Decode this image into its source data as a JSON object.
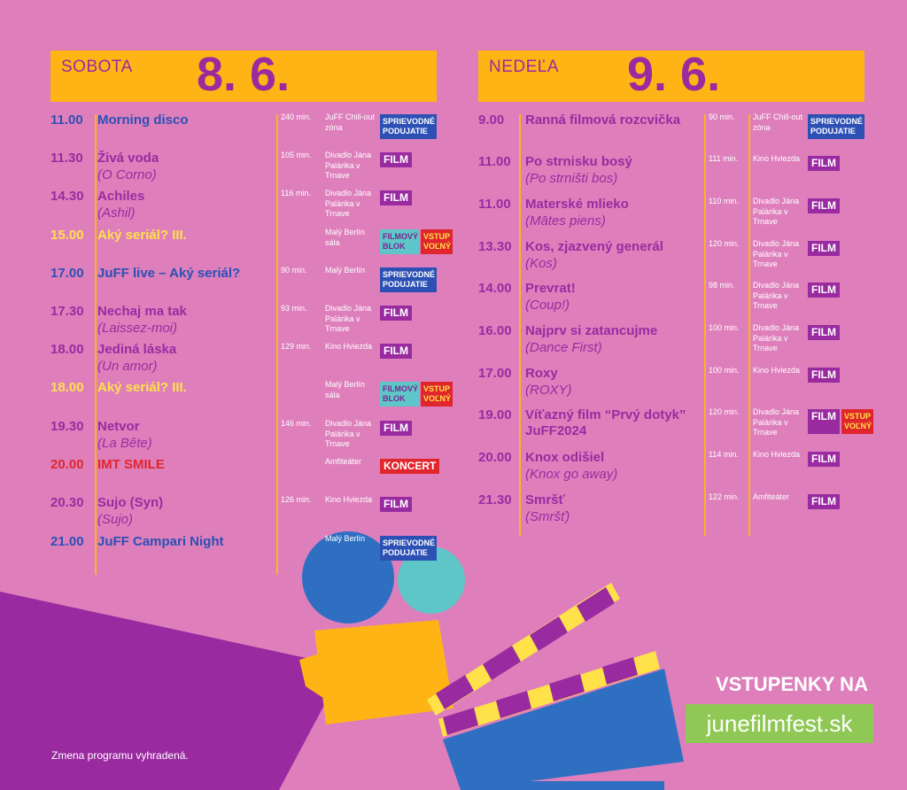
{
  "saturday": {
    "name": "SOBOTA",
    "date": "8. 6.",
    "events": [
      {
        "time": "11.00",
        "title": "Morning disco",
        "sub": "",
        "dur": "240 min.",
        "venue": "JuFF Chill-out zóna",
        "tags": [
          "SPRIEVODNÉ PODUJATIE"
        ],
        "color": "blue"
      },
      {
        "time": "11.30",
        "title": "Živá voda",
        "sub": "(O Corno)",
        "dur": "105 min.",
        "venue": "Divadlo Jána Palárika v Trnave",
        "tags": [
          "FILM"
        ],
        "color": "purple"
      },
      {
        "time": "14.30",
        "title": "Achiles",
        "sub": "(Ashil)",
        "dur": "116 min.",
        "venue": "Divadlo Jána Palárika v Trnave",
        "tags": [
          "FILM"
        ],
        "color": "purple"
      },
      {
        "time": "15.00",
        "title": "Aký seriál? III.",
        "sub": "",
        "dur": "",
        "venue": "Malý Berlín sála",
        "tags": [
          "FILMOVÝ BLOK",
          "VSTUP VOĽNÝ"
        ],
        "color": "yellow"
      },
      {
        "time": "17.00",
        "title": "JuFF live – Aký seriál?",
        "sub": "",
        "dur": "90 min.",
        "venue": "Malý Berlín",
        "tags": [
          "SPRIEVODNÉ PODUJATIE"
        ],
        "color": "blue"
      },
      {
        "time": "17.30",
        "title": "Nechaj ma tak",
        "sub": "(Laissez-moi)",
        "dur": "93 min.",
        "venue": "Divadlo Jána Palárika v Trnave",
        "tags": [
          "FILM"
        ],
        "color": "purple"
      },
      {
        "time": "18.00",
        "title": "Jediná láska",
        "sub": "(Un amor)",
        "dur": "129 min.",
        "venue": "Kino Hviezda",
        "tags": [
          "FILM"
        ],
        "color": "purple"
      },
      {
        "time": "18.00",
        "title": "Aký seriál? III.",
        "sub": "",
        "dur": "",
        "venue": "Malý Berlín sála",
        "tags": [
          "FILMOVÝ BLOK",
          "VSTUP VOĽNÝ"
        ],
        "color": "yellow"
      },
      {
        "time": "19.30",
        "title": "Netvor",
        "sub": "(La Bête)",
        "dur": "146 min.",
        "venue": "Divadlo Jána Palárika v Trnave",
        "tags": [
          "FILM"
        ],
        "color": "purple"
      },
      {
        "time": "20.00",
        "title": "IMT SMILE",
        "sub": "",
        "dur": "",
        "venue": "Amfiteáter",
        "tags": [
          "KONCERT"
        ],
        "color": "red"
      },
      {
        "time": "20.30",
        "title": "Sujo (Syn)",
        "sub": "(Sujo)",
        "dur": "126 min.",
        "venue": "Kino Hviezda",
        "tags": [
          "FILM"
        ],
        "color": "purple"
      },
      {
        "time": "21.00",
        "title": "JuFF Campari Night",
        "sub": "",
        "dur": "",
        "venue": "Malý Berlín",
        "tags": [
          "SPRIEVODNÉ PODUJATIE"
        ],
        "color": "blue"
      }
    ]
  },
  "sunday": {
    "name": "NEDEĽA",
    "date": "9. 6.",
    "events": [
      {
        "time": "9.00",
        "title": "Ranná filmová rozcvička",
        "sub": "",
        "dur": "90 min.",
        "venue": "JuFF Chill-out zóna",
        "tags": [
          "SPRIEVODNÉ PODUJATIE"
        ],
        "color": "purple"
      },
      {
        "time": "11.00",
        "title": "Po strnisku bosý",
        "sub": "(Po strništi bos)",
        "dur": "111 min.",
        "venue": "Kino Hviezda",
        "tags": [
          "FILM"
        ],
        "color": "purple"
      },
      {
        "time": "11.00",
        "title": "Materské mlieko",
        "sub": "(Mātes piens)",
        "dur": "110 min.",
        "venue": "Divadlo Jána Palárika v Trnave",
        "tags": [
          "FILM"
        ],
        "color": "purple"
      },
      {
        "time": "13.30",
        "title": "Kos, zjazvený generál",
        "sub": "(Kos)",
        "dur": "120 min.",
        "venue": "Divadlo Jána Palárika v Trnave",
        "tags": [
          "FILM"
        ],
        "color": "purple"
      },
      {
        "time": "14.00",
        "title": "Prevrat!",
        "sub": "(Coup!)",
        "dur": "98 min.",
        "venue": "Divadlo Jána Palárika v Trnave",
        "tags": [
          "FILM"
        ],
        "color": "purple"
      },
      {
        "time": "16.00",
        "title": "Najprv si zatancujme",
        "sub": "(Dance First)",
        "dur": "100 min.",
        "venue": "Divadlo Jána Palárika v Trnave",
        "tags": [
          "FILM"
        ],
        "color": "purple"
      },
      {
        "time": "17.00",
        "title": "Roxy",
        "sub": "(ROXY)",
        "dur": "100 min.",
        "venue": "Kino Hviezda",
        "tags": [
          "FILM"
        ],
        "color": "purple"
      },
      {
        "time": "19.00",
        "title": "Víťazný film “Prvý dotyk” JuFF2024",
        "sub": "",
        "dur": "120 min.",
        "venue": "Divadlo Jána Palárika v Trnave",
        "tags": [
          "FILM",
          "VSTUP VOĽNÝ"
        ],
        "color": "purple"
      },
      {
        "time": "20.00",
        "title": "Knox odišiel",
        "sub": "(Knox go away)",
        "dur": "114 min.",
        "venue": "Kino Hviezda",
        "tags": [
          "FILM"
        ],
        "color": "purple"
      },
      {
        "time": "21.30",
        "title": "Smršť",
        "sub": "(Smršť)",
        "dur": "122 min.",
        "venue": "Amfiteáter",
        "tags": [
          "FILM"
        ],
        "color": "purple"
      }
    ]
  },
  "footer": {
    "note": "Zmena programu vyhradená.",
    "tickets_label": "VSTUPENKY NA",
    "tickets_url": "junefilmfest.sk"
  },
  "colors": {
    "background": "#de7fbc",
    "header_yellow": "#ffb415",
    "purple": "#9a2aa0",
    "blue": "#2c50b4",
    "red": "#e0262c",
    "green": "#8fc855"
  }
}
